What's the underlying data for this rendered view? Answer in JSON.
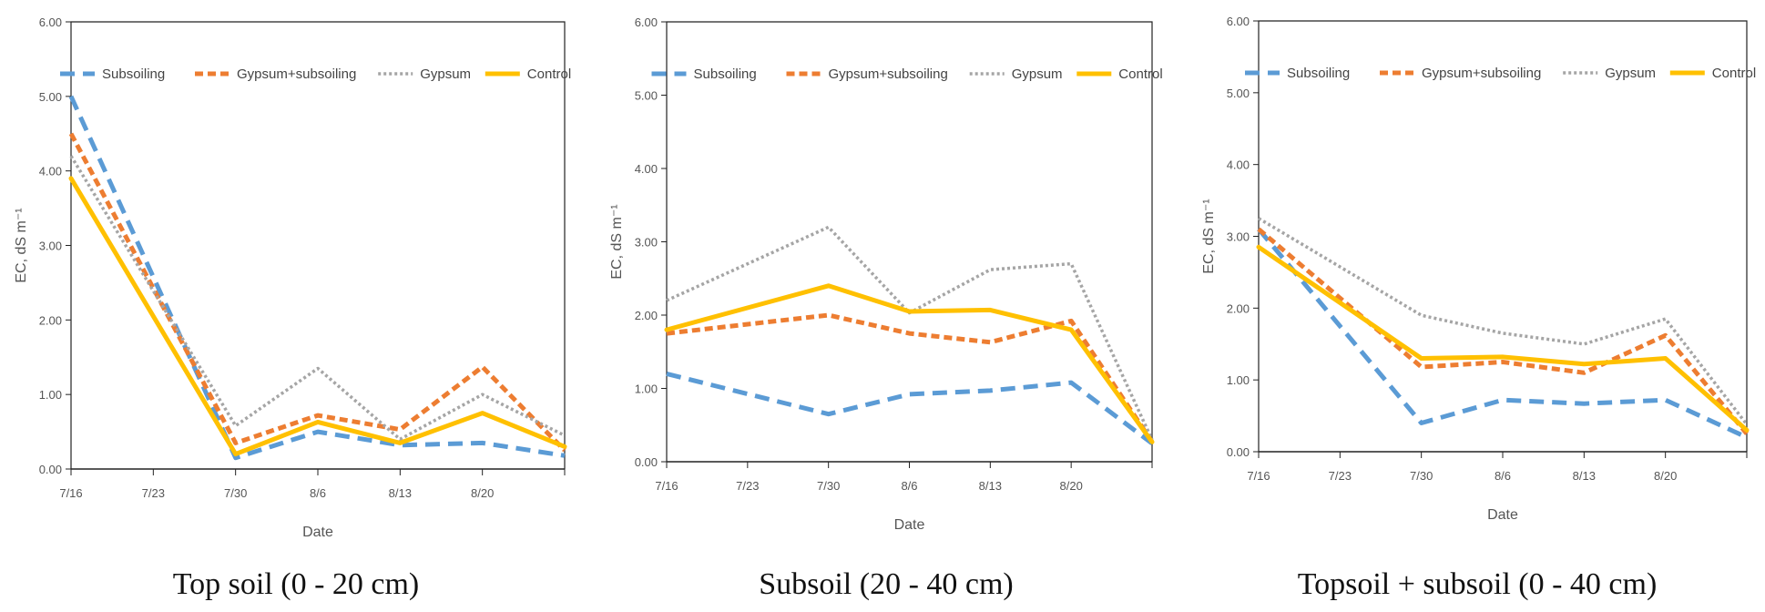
{
  "chart_data": [
    {
      "type": "line",
      "caption": "Top soil (0 - 20 cm)",
      "xlabel": "Date",
      "ylabel": "EC, dS m⁻¹",
      "ylim": [
        0,
        6
      ],
      "yticks": [
        "0.00",
        "1.00",
        "2.00",
        "3.00",
        "4.00",
        "5.00",
        "6.00"
      ],
      "categories": [
        "7/16",
        "7/23",
        "7/30",
        "8/6",
        "8/13",
        "8/20"
      ],
      "x": [
        0,
        2,
        3,
        4,
        5,
        6
      ],
      "series": [
        {
          "name": "Subsoiling",
          "values": [
            5.0,
            0.15,
            0.5,
            0.32,
            0.35,
            0.18
          ]
        },
        {
          "name": "Gypsum+subsoiling",
          "values": [
            4.5,
            0.35,
            0.72,
            0.53,
            1.37,
            0.25
          ]
        },
        {
          "name": "Gypsum",
          "values": [
            4.2,
            0.58,
            1.35,
            0.4,
            1.0,
            0.45
          ]
        },
        {
          "name": "Control",
          "values": [
            3.9,
            0.2,
            0.63,
            0.35,
            0.75,
            0.3
          ]
        }
      ]
    },
    {
      "type": "line",
      "caption": "Subsoil (20 - 40 cm)",
      "xlabel": "Date",
      "ylabel": "EC, dS m⁻¹",
      "ylim": [
        0,
        6
      ],
      "yticks": [
        "0.00",
        "1.00",
        "2.00",
        "3.00",
        "4.00",
        "5.00",
        "6.00"
      ],
      "categories": [
        "7/16",
        "7/23",
        "7/30",
        "8/6",
        "8/13",
        "8/20"
      ],
      "x": [
        0,
        2,
        3,
        4,
        5,
        6
      ],
      "series": [
        {
          "name": "Subsoiling",
          "values": [
            1.2,
            0.65,
            0.92,
            0.97,
            1.08,
            0.25
          ]
        },
        {
          "name": "Gypsum+subsoiling",
          "values": [
            1.75,
            2.0,
            1.75,
            1.63,
            1.92,
            0.27
          ]
        },
        {
          "name": "Gypsum",
          "values": [
            2.2,
            3.2,
            2.03,
            2.62,
            2.7,
            0.3
          ]
        },
        {
          "name": "Control",
          "values": [
            1.8,
            2.4,
            2.05,
            2.07,
            1.8,
            0.27
          ]
        }
      ]
    },
    {
      "type": "line",
      "caption": "Topsoil + subsoil (0 - 40 cm)",
      "xlabel": "Date",
      "ylabel": "EC, dS m⁻¹",
      "ylim": [
        0,
        6
      ],
      "yticks": [
        "0.00",
        "1.00",
        "2.00",
        "3.00",
        "4.00",
        "5.00",
        "6.00"
      ],
      "categories": [
        "7/16",
        "7/23",
        "7/30",
        "8/6",
        "8/13",
        "8/20"
      ],
      "x": [
        0,
        2,
        3,
        4,
        5,
        6
      ],
      "series": [
        {
          "name": "Subsoiling",
          "values": [
            3.1,
            0.4,
            0.72,
            0.67,
            0.72,
            0.2
          ]
        },
        {
          "name": "Gypsum+subsoiling",
          "values": [
            3.1,
            1.18,
            1.25,
            1.1,
            1.62,
            0.25
          ]
        },
        {
          "name": "Gypsum",
          "values": [
            3.25,
            1.9,
            1.65,
            1.5,
            1.85,
            0.38
          ]
        },
        {
          "name": "Control",
          "values": [
            2.85,
            1.3,
            1.32,
            1.22,
            1.3,
            0.3
          ]
        }
      ]
    }
  ],
  "styles": [
    {
      "name": "Subsoiling",
      "color": "#5B9BD5",
      "dash": "dashed"
    },
    {
      "name": "Gypsum+subsoiling",
      "color": "#ED7D31",
      "dash": "short-dashed"
    },
    {
      "name": "Gypsum",
      "color": "#A5A5A5",
      "dash": "dotted"
    },
    {
      "name": "Control",
      "color": "#FFC000",
      "dash": "solid"
    }
  ]
}
